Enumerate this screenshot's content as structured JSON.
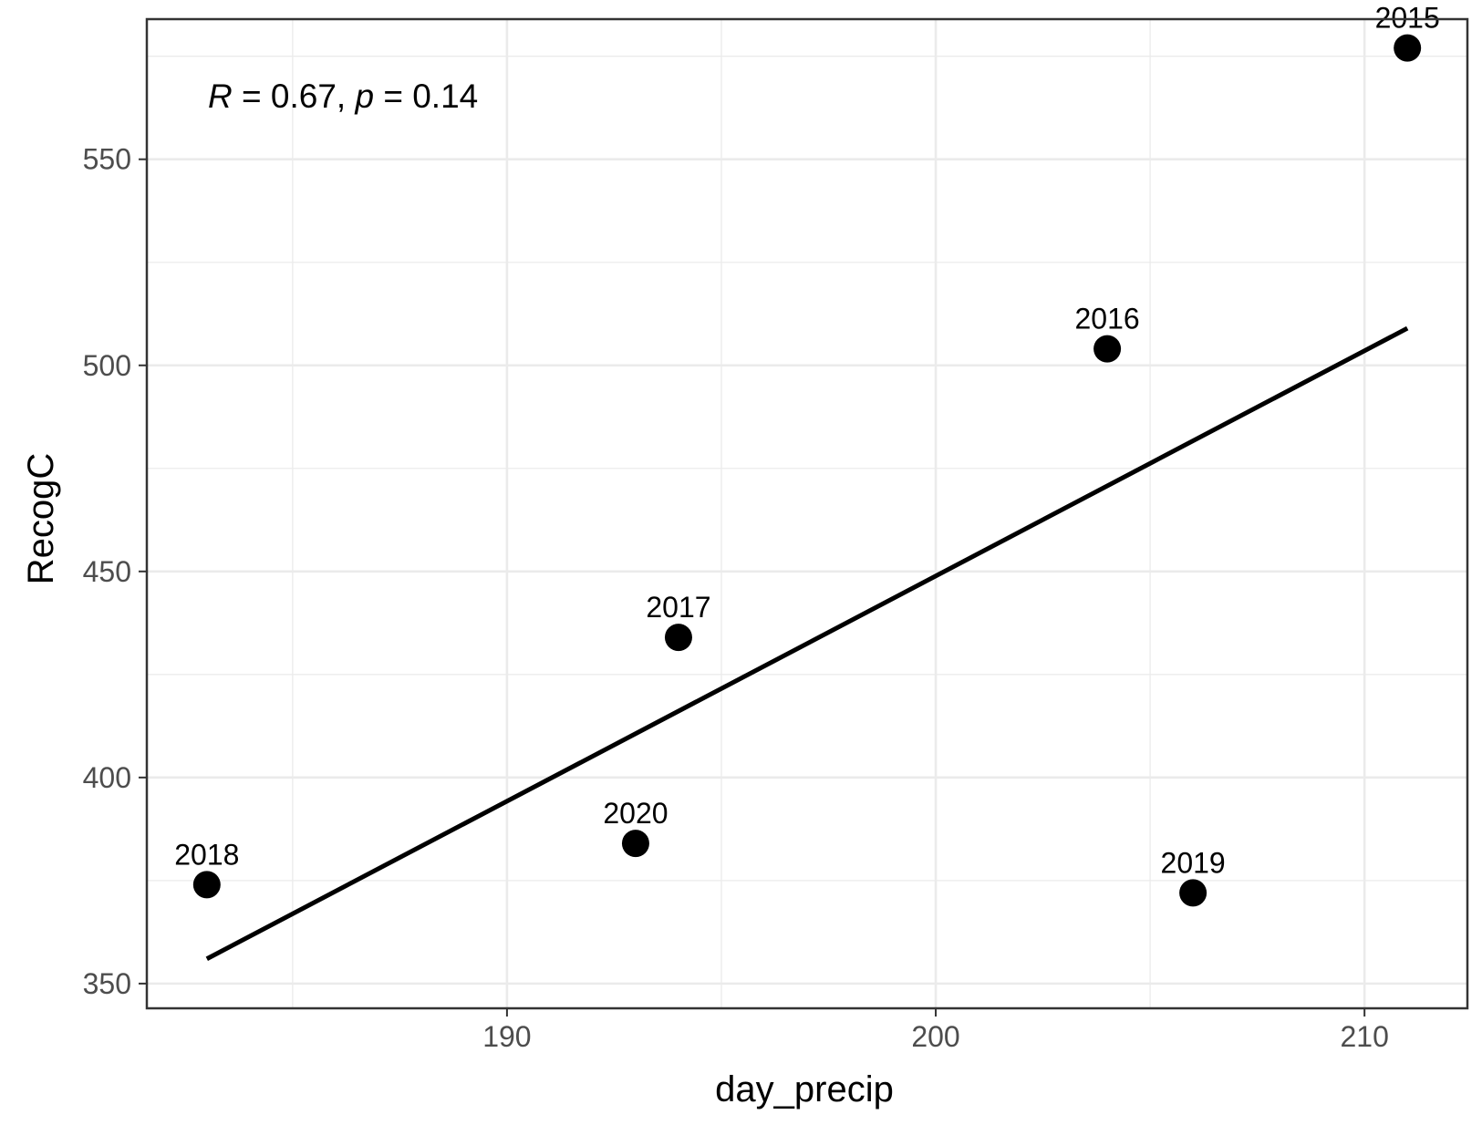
{
  "chart_data": {
    "type": "scatter",
    "xlabel": "day_precip",
    "ylabel": "RecogC",
    "xlim": [
      181.6,
      212.4
    ],
    "ylim": [
      344.0,
      584.0
    ],
    "x_ticks": [
      190,
      200,
      210
    ],
    "y_ticks": [
      350,
      400,
      450,
      500,
      550
    ],
    "grid": true,
    "points": [
      {
        "label": "2015",
        "x": 211.0,
        "y": 577
      },
      {
        "label": "2016",
        "x": 204.0,
        "y": 504
      },
      {
        "label": "2017",
        "x": 194.0,
        "y": 434
      },
      {
        "label": "2018",
        "x": 183.0,
        "y": 374
      },
      {
        "label": "2019",
        "x": 206.0,
        "y": 372
      },
      {
        "label": "2020",
        "x": 193.0,
        "y": 384
      }
    ],
    "fit_line": {
      "x": [
        183.0,
        211.0
      ],
      "y": [
        356.0,
        509.0
      ]
    },
    "annotation": {
      "r_symbol": "R",
      "r_text": " = 0.67, ",
      "p_symbol": "p",
      "p_text": " = 0.14"
    },
    "colors": {
      "point": "#000000",
      "line": "#000000",
      "grid": "#ebebeb",
      "panel_border": "#333333"
    }
  }
}
